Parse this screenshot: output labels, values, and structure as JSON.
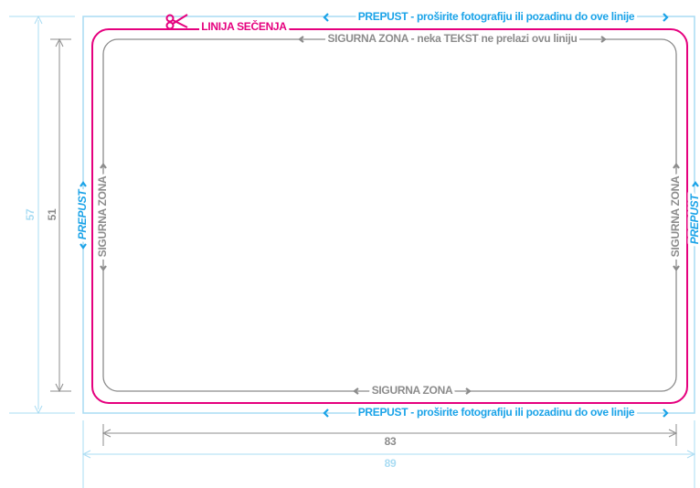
{
  "cut_line": {
    "label": "LINIJA SEČENJA"
  },
  "bleed": {
    "top_label": "PREPUST - proširite fotografiju ili pozadinu do ove linije",
    "bottom_label": "PREPUST - proširite fotografiju ili pozadinu do ove linije",
    "left_label": "PREPUST",
    "right_label": "PREPUST"
  },
  "safe_zone": {
    "top_label": "SIGURNA ZONA - neka TEKST ne prelazi ovu liniju",
    "bottom_label": "SIGURNA ZONA",
    "left_label": "SIGURNA ZONA",
    "right_label": "SIGURNA ZONA"
  },
  "dimensions": {
    "bleed_height": "57",
    "safe_height": "51",
    "safe_width": "83",
    "bleed_width": "89"
  }
}
